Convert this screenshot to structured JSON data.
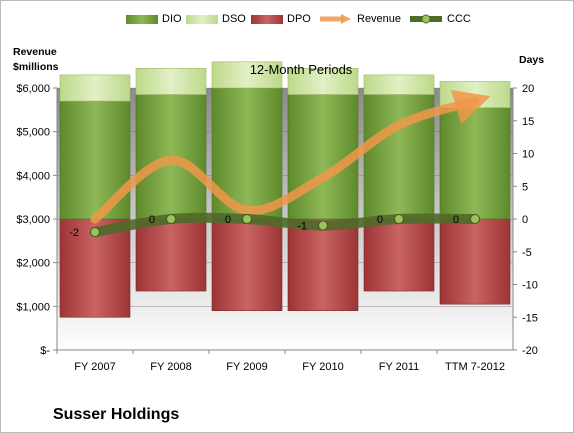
{
  "chart_data": {
    "type": "bar",
    "title": "12-Month Periods",
    "company": "Susser Holdings",
    "categories": [
      "FY 2007",
      "FY 2008",
      "FY 2009",
      "FY 2010",
      "FY 2011",
      "TTM 7-2012"
    ],
    "left_axis": {
      "label_line1": "Revenue",
      "label_line2": "$millions",
      "ylim": [
        0,
        6000
      ],
      "ticks": [
        "$-",
        "$1,000",
        "$2,000",
        "$3,000",
        "$4,000",
        "$5,000",
        "$6,000"
      ]
    },
    "right_axis": {
      "label": "Days",
      "ylim": [
        -20,
        20
      ],
      "ticks": [
        "-20",
        "-15",
        "-10",
        "-5",
        "0",
        "5",
        "10",
        "15",
        "20"
      ]
    },
    "series": [
      {
        "name": "DIO",
        "axis": "right",
        "values": [
          18,
          19,
          20,
          19,
          19,
          17
        ],
        "color": "#77a23b"
      },
      {
        "name": "DSO",
        "axis": "right",
        "values": [
          4,
          4,
          4,
          4,
          3,
          4
        ],
        "color": "#d4e8a8"
      },
      {
        "name": "DPO",
        "axis": "right",
        "values": [
          -15,
          -11,
          -14,
          -14,
          -11,
          -13
        ],
        "color": "#b94a4a"
      },
      {
        "name": "Revenue",
        "axis": "left",
        "values": [
          3000,
          4350,
          3200,
          3950,
          5150,
          5700
        ],
        "color": "#f0984a"
      },
      {
        "name": "CCC",
        "axis": "right",
        "values": [
          -2,
          0,
          0,
          -1,
          0,
          0
        ],
        "color": "#5c7a32"
      }
    ],
    "ccc_labels": [
      "-2",
      "0",
      "0",
      "-1",
      "0",
      "0"
    ],
    "grid": true,
    "legend_position": "top"
  }
}
